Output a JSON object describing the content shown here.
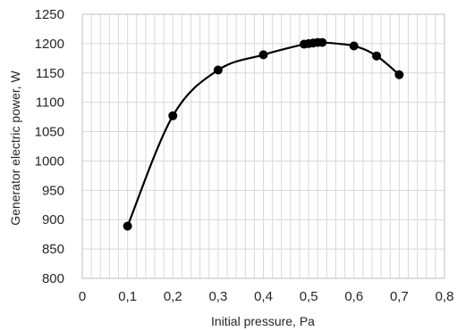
{
  "chart_data": {
    "type": "line",
    "xlabel": "Initial pressure, Pa",
    "ylabel": "Generator electric power, W",
    "xlim": [
      0,
      0.8
    ],
    "ylim": [
      800,
      1250
    ],
    "x_ticks": [
      0,
      0.1,
      0.2,
      0.3,
      0.4,
      0.5,
      0.6,
      0.7,
      0.8
    ],
    "x_tick_labels": [
      "0",
      "0,1",
      "0,2",
      "0,3",
      "0,4",
      "0,5",
      "0,6",
      "0,7",
      "0,8"
    ],
    "y_ticks": [
      800,
      850,
      900,
      950,
      1000,
      1050,
      1100,
      1150,
      1200,
      1250
    ],
    "y_tick_labels": [
      "800",
      "850",
      "900",
      "950",
      "1000",
      "1050",
      "1100",
      "1150",
      "1200",
      "1250"
    ],
    "grid": {
      "x_major": true,
      "x_minor": true,
      "y_major": true
    },
    "legend": false,
    "series": [
      {
        "color": "#000000",
        "smooth": true,
        "markers": true,
        "x": [
          0.1,
          0.2,
          0.3,
          0.4,
          0.49,
          0.5,
          0.51,
          0.52,
          0.53,
          0.6,
          0.65,
          0.7
        ],
        "y": [
          889,
          1077,
          1155,
          1181,
          1199,
          1200,
          1201,
          1202,
          1202,
          1196,
          1179,
          1147
        ]
      }
    ]
  }
}
